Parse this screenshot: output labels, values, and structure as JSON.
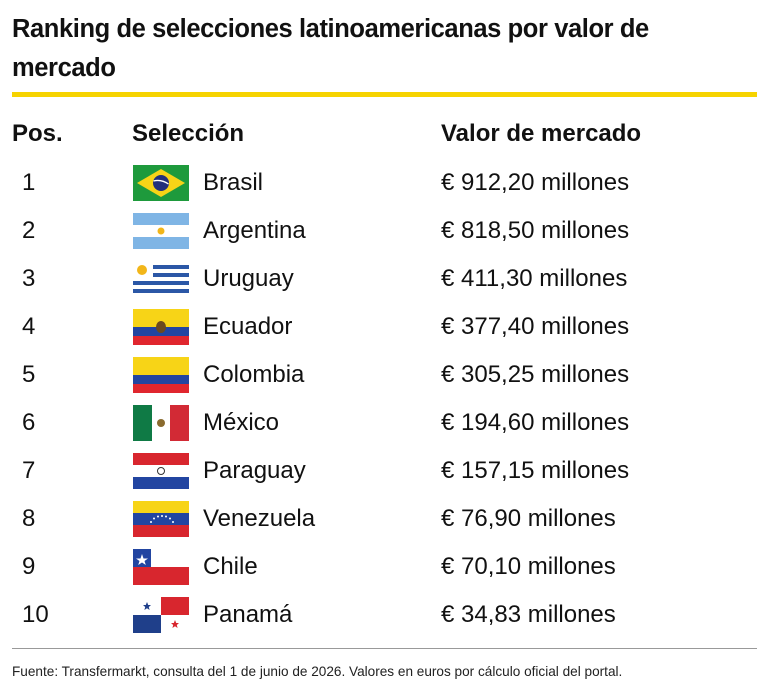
{
  "header": {
    "title": "Ranking de selecciones latinoamericanas por valor de mercado"
  },
  "table": {
    "columns": [
      "Pos.",
      "Selección",
      "Valor de mercado"
    ],
    "rows": [
      [
        "1",
        "Brasil",
        "€ 912,20 millones"
      ],
      [
        "2",
        "Argentina",
        "€ 818,50 millones"
      ],
      [
        "3",
        "Uruguay",
        "€ 411,30 millones"
      ],
      [
        "4",
        "Ecuador",
        "€ 377,40 millones"
      ],
      [
        "5",
        "Colombia",
        "€ 305,25 millones"
      ],
      [
        "6",
        "México",
        "€ 194,60 millones"
      ],
      [
        "7",
        "Paraguay",
        "€ 157,15 millones"
      ],
      [
        "8",
        "Venezuela",
        "€ 76,90 millones"
      ],
      [
        "9",
        "Chile",
        "€ 70,10 millones"
      ],
      [
        "10",
        "Panamá",
        "€ 34,83 millones"
      ]
    ]
  },
  "footer": {
    "source": "Fuente: Transfermarkt, consulta del 1 de junio de 2026. Valores en euros por cálculo oficial del portal."
  }
}
